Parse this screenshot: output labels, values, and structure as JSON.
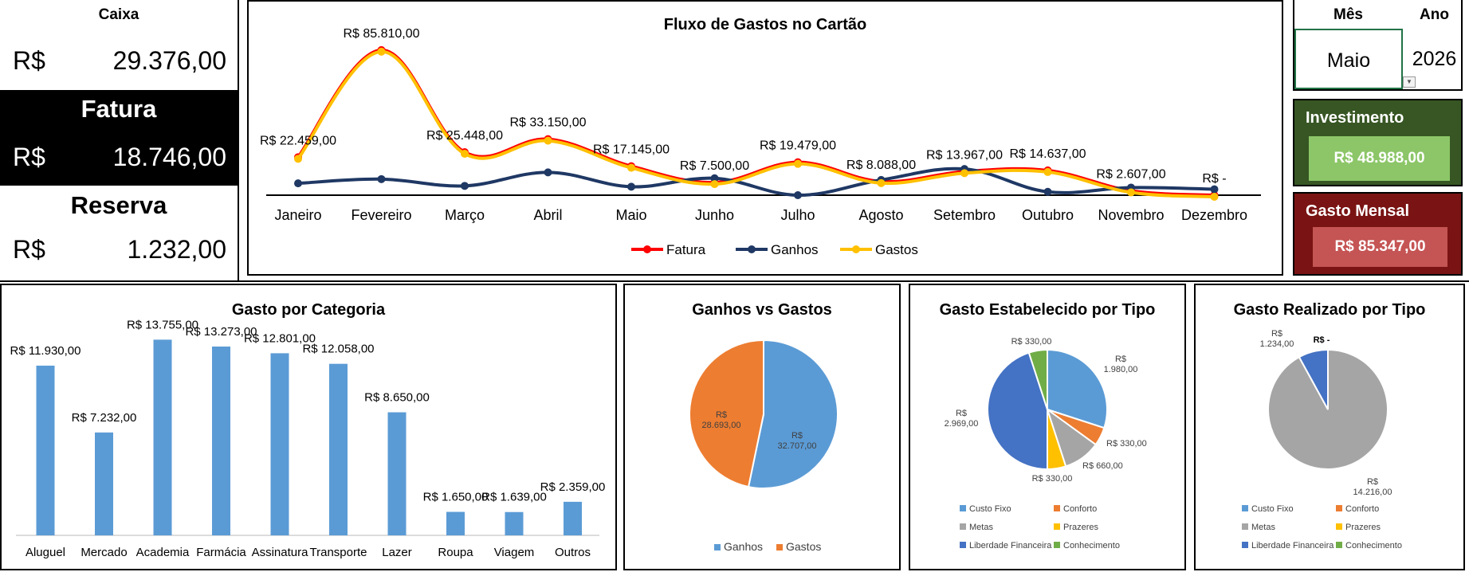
{
  "summary": {
    "caixa": {
      "label": "Caixa",
      "currency": "R$",
      "value": "29.376,00"
    },
    "fatura": {
      "label": "Fatura",
      "currency": "R$",
      "value": "18.746,00"
    },
    "reserva": {
      "label": "Reserva",
      "currency": "R$",
      "value": "1.232,00"
    }
  },
  "selector": {
    "mes_label": "Mês",
    "ano_label": "Ano",
    "mes_value": "Maio",
    "ano_value": "2026"
  },
  "panels": {
    "investimento": {
      "label": "Investimento",
      "value": "R$ 48.988,00",
      "bg": "#375623",
      "btn": "#8cc668"
    },
    "gasto_mensal": {
      "label": "Gasto Mensal",
      "value": "R$ 85.347,00",
      "bg": "#7a1313",
      "btn": "#c55454"
    }
  },
  "colors": {
    "fatura": "#ff0000",
    "ganhos": "#1f3864",
    "gastos": "#ffc000",
    "bar": "#5b9bd5",
    "blue": "#5b9bd5",
    "orange": "#ed7d31",
    "gray": "#a5a5a5",
    "yellow": "#ffc000",
    "darkblue": "#4472c4",
    "green": "#70ad47"
  },
  "chart_data": [
    {
      "id": "fluxo",
      "type": "line",
      "title": "Fluxo de Gastos no Cartão",
      "categories": [
        "Janeiro",
        "Fevereiro",
        "Março",
        "Abril",
        "Maio",
        "Junho",
        "Julho",
        "Agosto",
        "Setembro",
        "Outubro",
        "Novembro",
        "Dezembro"
      ],
      "ylim": [
        0,
        90000
      ],
      "series": [
        {
          "name": "Fatura",
          "color": "#ff0000",
          "values": [
            22459,
            85810,
            25448,
            33150,
            17145,
            7500,
            19479,
            8088,
            13967,
            14637,
            2607,
            0
          ]
        },
        {
          "name": "Ganhos",
          "color": "#1f3864",
          "values": [
            7000,
            9500,
            5500,
            13500,
            5000,
            10000,
            0,
            9000,
            15500,
            2000,
            4500,
            3500
          ]
        },
        {
          "name": "Gastos",
          "color": "#ffc000",
          "values": [
            22459,
            85810,
            25448,
            33150,
            17145,
            7500,
            19479,
            8088,
            13967,
            14637,
            2607,
            0
          ]
        }
      ],
      "data_labels": [
        "R$ 22.459,00",
        "R$ 85.810,00",
        "R$ 25.448,00",
        "R$ 33.150,00",
        "R$ 17.145,00",
        "R$ 7.500,00",
        "R$ 19.479,00",
        "R$ 8.088,00",
        "R$ 13.967,00",
        "R$ 14.637,00",
        "R$ 2.607,00",
        "R$ -"
      ],
      "legend": "bottom"
    },
    {
      "id": "categoria",
      "type": "bar",
      "title": "Gasto por Categoria",
      "categories": [
        "Aluguel",
        "Mercado",
        "Academia",
        "Farmácia",
        "Assinatura",
        "Transporte",
        "Lazer",
        "Roupa",
        "Viagem",
        "Outros"
      ],
      "values": [
        11930,
        7232,
        13755,
        13273,
        12801,
        12058,
        8650,
        1650,
        1639,
        2359
      ],
      "data_labels": [
        "R$ 11.930,00",
        "R$ 7.232,00",
        "R$ 13.755,00",
        "R$ 13.273,00",
        "R$ 12.801,00",
        "R$ 12.058,00",
        "R$ 8.650,00",
        "R$ 1.650,00",
        "R$ 1.639,00",
        "R$ 2.359,00"
      ],
      "ylim": [
        0,
        14000
      ]
    },
    {
      "id": "ganhos_gastos",
      "type": "pie",
      "title": "Ganhos vs Gastos",
      "categories": [
        "Ganhos",
        "Gastos"
      ],
      "values": [
        32707,
        28693
      ],
      "data_labels": [
        "R$ 32.707,00",
        "R$ 28.693,00"
      ],
      "colors": [
        "#5b9bd5",
        "#ed7d31"
      ],
      "legend": "bottom"
    },
    {
      "id": "estabelecido",
      "type": "pie",
      "title": "Gasto Estabelecido por Tipo",
      "categories": [
        "Custo Fixo",
        "Conforto",
        "Metas",
        "Prazeres",
        "Liberdade Financeira",
        "Conhecimento"
      ],
      "values": [
        1980,
        330,
        660,
        330,
        2969,
        330
      ],
      "data_labels": [
        "R$ 1.980,00",
        "R$ 330,00",
        "R$ 660,00",
        "R$ 330,00",
        "R$ 2.969,00",
        "R$ 330,00"
      ],
      "colors": [
        "#5b9bd5",
        "#ed7d31",
        "#a5a5a5",
        "#ffc000",
        "#4472c4",
        "#70ad47"
      ],
      "legend": "bottom"
    },
    {
      "id": "realizado",
      "type": "pie",
      "title": "Gasto Realizado por Tipo",
      "categories": [
        "Custo Fixo",
        "Conforto",
        "Metas",
        "Prazeres",
        "Liberdade Financeira",
        "Conhecimento"
      ],
      "values": [
        0,
        0,
        14216,
        0,
        1234,
        0
      ],
      "data_labels": [
        "",
        "",
        "R$ 14.216,00",
        "",
        "R$ 1.234,00",
        "R$ -"
      ],
      "colors": [
        "#5b9bd5",
        "#ed7d31",
        "#a5a5a5",
        "#ffc000",
        "#4472c4",
        "#70ad47"
      ],
      "legend": "bottom"
    }
  ]
}
